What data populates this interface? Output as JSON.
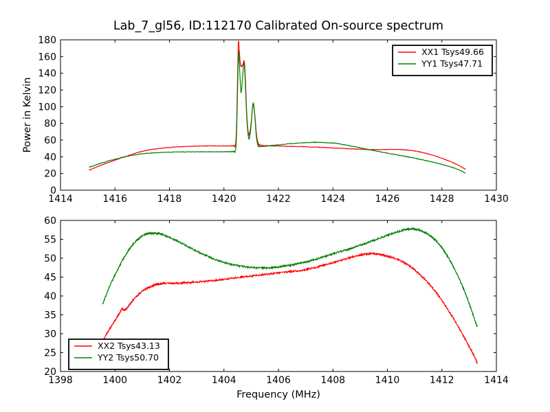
{
  "figure": {
    "background": "#ffffff",
    "text_color": "#000000"
  },
  "chart_data": [
    {
      "type": "line",
      "title": "Lab_7_gl56, ID:112170 Calibrated On-source spectrum",
      "xlabel": "",
      "ylabel": "Power in Kelvin",
      "xlim": [
        1414,
        1430
      ],
      "ylim": [
        0,
        180
      ],
      "xticks": [
        1414,
        1416,
        1418,
        1420,
        1422,
        1424,
        1426,
        1428,
        1430
      ],
      "yticks": [
        0,
        20,
        40,
        60,
        80,
        100,
        120,
        140,
        160,
        180
      ],
      "grid": false,
      "noise_kelvin": 0.3,
      "legend": {
        "position": "upper right",
        "entries": [
          "XX1 Tsys49.66",
          "YY1 Tsys47.71"
        ]
      },
      "series": [
        {
          "name": "XX1 Tsys49.66",
          "color": "#ff0000",
          "points": [
            [
              1415.05,
              24
            ],
            [
              1415.5,
              30
            ],
            [
              1416.0,
              36
            ],
            [
              1416.5,
              41.5
            ],
            [
              1417.0,
              46.5
            ],
            [
              1417.5,
              49.5
            ],
            [
              1418.0,
              51.2
            ],
            [
              1418.5,
              52.2
            ],
            [
              1419.0,
              52.8
            ],
            [
              1419.5,
              53.0
            ],
            [
              1420.0,
              53.0
            ],
            [
              1420.35,
              53.2
            ],
            [
              1420.42,
              54
            ],
            [
              1420.46,
              75
            ],
            [
              1420.5,
              135
            ],
            [
              1420.53,
              177
            ],
            [
              1420.56,
              168
            ],
            [
              1420.6,
              152
            ],
            [
              1420.64,
              148
            ],
            [
              1420.7,
              151
            ],
            [
              1420.75,
              154
            ],
            [
              1420.79,
              130
            ],
            [
              1420.84,
              90
            ],
            [
              1420.89,
              70
            ],
            [
              1420.93,
              67
            ],
            [
              1420.99,
              78
            ],
            [
              1421.05,
              99
            ],
            [
              1421.09,
              101
            ],
            [
              1421.14,
              88
            ],
            [
              1421.19,
              68
            ],
            [
              1421.25,
              57
            ],
            [
              1421.33,
              54
            ],
            [
              1421.6,
              53.2
            ],
            [
              1422.0,
              52.8
            ],
            [
              1422.5,
              52.4
            ],
            [
              1423.0,
              52.0
            ],
            [
              1423.5,
              51.4
            ],
            [
              1424.0,
              50.6
            ],
            [
              1424.5,
              49.8
            ],
            [
              1425.0,
              49.0
            ],
            [
              1425.5,
              48.6
            ],
            [
              1426.0,
              48.8
            ],
            [
              1426.5,
              48.6
            ],
            [
              1426.9,
              47.5
            ],
            [
              1427.3,
              45.0
            ],
            [
              1427.7,
              41.5
            ],
            [
              1428.1,
              37.0
            ],
            [
              1428.5,
              31.5
            ],
            [
              1428.87,
              25
            ]
          ]
        },
        {
          "name": "YY1 Tsys47.71",
          "color": "#008000",
          "points": [
            [
              1415.05,
              27.5
            ],
            [
              1415.5,
              32.5
            ],
            [
              1416.0,
              37
            ],
            [
              1416.5,
              41
            ],
            [
              1417.0,
              43.5
            ],
            [
              1417.5,
              44.9
            ],
            [
              1418.0,
              45.6
            ],
            [
              1418.5,
              45.9
            ],
            [
              1419.0,
              46.0
            ],
            [
              1419.5,
              46.0
            ],
            [
              1420.0,
              46.0
            ],
            [
              1420.35,
              46.4
            ],
            [
              1420.42,
              48
            ],
            [
              1420.46,
              65
            ],
            [
              1420.5,
              120
            ],
            [
              1420.535,
              165
            ],
            [
              1420.57,
              148
            ],
            [
              1420.61,
              124
            ],
            [
              1420.64,
              118
            ],
            [
              1420.7,
              142
            ],
            [
              1420.745,
              152
            ],
            [
              1420.79,
              122
            ],
            [
              1420.84,
              85
            ],
            [
              1420.89,
              66
            ],
            [
              1420.93,
              62
            ],
            [
              1420.99,
              75
            ],
            [
              1421.05,
              100
            ],
            [
              1421.09,
              103
            ],
            [
              1421.14,
              86
            ],
            [
              1421.19,
              64
            ],
            [
              1421.25,
              54
            ],
            [
              1421.33,
              52.2
            ],
            [
              1421.7,
              53.3
            ],
            [
              1422.0,
              54.3
            ],
            [
              1422.5,
              55.9
            ],
            [
              1423.0,
              56.9
            ],
            [
              1423.35,
              57.3
            ],
            [
              1423.7,
              57.0
            ],
            [
              1424.1,
              56.2
            ],
            [
              1424.5,
              53.9
            ],
            [
              1424.9,
              51.4
            ],
            [
              1425.3,
              48.7
            ],
            [
              1425.7,
              46.2
            ],
            [
              1426.1,
              43.8
            ],
            [
              1426.5,
              41.4
            ],
            [
              1426.9,
              39.0
            ],
            [
              1427.3,
              36.3
            ],
            [
              1427.7,
              33.4
            ],
            [
              1428.1,
              30.0
            ],
            [
              1428.5,
              26.0
            ],
            [
              1428.87,
              20.5
            ]
          ]
        }
      ]
    },
    {
      "type": "line",
      "title": "",
      "xlabel": "Frequency (MHz)",
      "ylabel": "",
      "xlim": [
        1398,
        1414
      ],
      "ylim": [
        20,
        60
      ],
      "xticks": [
        1398,
        1400,
        1402,
        1404,
        1406,
        1408,
        1410,
        1412,
        1414
      ],
      "yticks": [
        20,
        25,
        30,
        35,
        40,
        45,
        50,
        55,
        60
      ],
      "grid": false,
      "noise_kelvin": 0.22,
      "legend": {
        "position": "lower left",
        "entries": [
          "XX2 Tsys43.13",
          "YY2 Tsys50.70"
        ]
      },
      "series": [
        {
          "name": "XX2 Tsys43.13",
          "color": "#ff0000",
          "points": [
            [
              1399.45,
              26.5
            ],
            [
              1399.7,
              30
            ],
            [
              1400.0,
              33.5
            ],
            [
              1400.18,
              35.6
            ],
            [
              1400.26,
              36.6
            ],
            [
              1400.36,
              36.2
            ],
            [
              1400.6,
              38.3
            ],
            [
              1400.9,
              40.6
            ],
            [
              1401.2,
              42.1
            ],
            [
              1401.5,
              43.0
            ],
            [
              1401.8,
              43.3
            ],
            [
              1402.2,
              43.4
            ],
            [
              1402.6,
              43.5
            ],
            [
              1403.0,
              43.7
            ],
            [
              1403.5,
              44.0
            ],
            [
              1404.0,
              44.4
            ],
            [
              1404.5,
              44.9
            ],
            [
              1405.0,
              45.3
            ],
            [
              1405.5,
              45.7
            ],
            [
              1406.0,
              46.1
            ],
            [
              1406.5,
              46.5
            ],
            [
              1407.0,
              47.0
            ],
            [
              1407.5,
              47.8
            ],
            [
              1408.0,
              48.8
            ],
            [
              1408.5,
              49.9
            ],
            [
              1409.0,
              50.8
            ],
            [
              1409.35,
              51.2
            ],
            [
              1409.7,
              51.0
            ],
            [
              1410.0,
              50.5
            ],
            [
              1410.4,
              49.6
            ],
            [
              1410.8,
              48.0
            ],
            [
              1411.2,
              45.6
            ],
            [
              1411.6,
              42.6
            ],
            [
              1412.0,
              38.8
            ],
            [
              1412.4,
              34.3
            ],
            [
              1412.8,
              29.3
            ],
            [
              1413.1,
              25.3
            ],
            [
              1413.3,
              22.3
            ]
          ]
        },
        {
          "name": "YY2 Tsys50.70",
          "color": "#008000",
          "points": [
            [
              1399.55,
              37.8
            ],
            [
              1399.8,
              42.5
            ],
            [
              1400.1,
              47
            ],
            [
              1400.4,
              51
            ],
            [
              1400.7,
              54
            ],
            [
              1401.0,
              55.9
            ],
            [
              1401.3,
              56.6
            ],
            [
              1401.6,
              56.5
            ],
            [
              1401.9,
              55.8
            ],
            [
              1402.3,
              54.5
            ],
            [
              1402.7,
              53.0
            ],
            [
              1403.1,
              51.5
            ],
            [
              1403.5,
              50.2
            ],
            [
              1403.9,
              49.1
            ],
            [
              1404.3,
              48.3
            ],
            [
              1404.7,
              47.8
            ],
            [
              1405.1,
              47.5
            ],
            [
              1405.5,
              47.4
            ],
            [
              1405.9,
              47.6
            ],
            [
              1406.3,
              48.0
            ],
            [
              1406.7,
              48.5
            ],
            [
              1407.1,
              49.2
            ],
            [
              1407.5,
              50.0
            ],
            [
              1407.9,
              50.9
            ],
            [
              1408.3,
              51.8
            ],
            [
              1408.7,
              52.7
            ],
            [
              1409.1,
              53.7
            ],
            [
              1409.5,
              54.7
            ],
            [
              1409.9,
              55.8
            ],
            [
              1410.3,
              56.8
            ],
            [
              1410.7,
              57.6
            ],
            [
              1411.0,
              57.7
            ],
            [
              1411.3,
              57.1
            ],
            [
              1411.6,
              55.8
            ],
            [
              1411.9,
              53.7
            ],
            [
              1412.2,
              50.6
            ],
            [
              1412.5,
              46.6
            ],
            [
              1412.8,
              41.8
            ],
            [
              1413.05,
              37.0
            ],
            [
              1413.3,
              31.8
            ]
          ]
        }
      ]
    }
  ]
}
